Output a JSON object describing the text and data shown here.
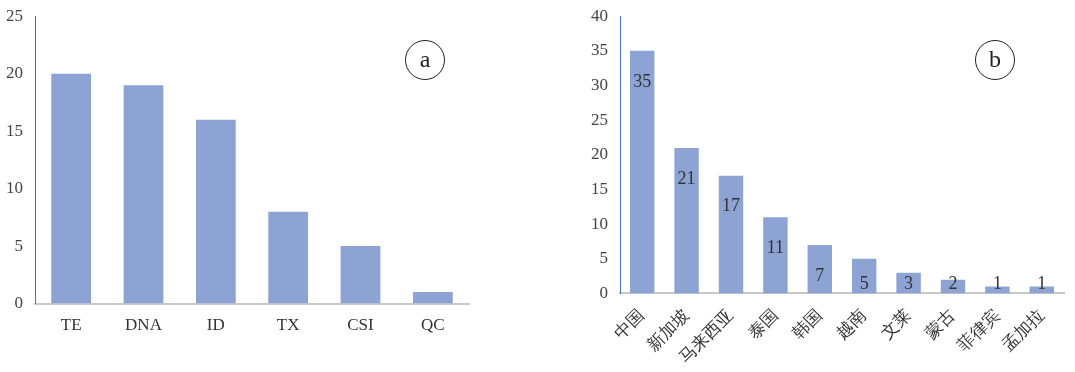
{
  "chart_data": [
    {
      "type": "bar",
      "categories": [
        "TE",
        "DNA",
        "ID",
        "TX",
        "CSI",
        "QC"
      ],
      "values": [
        20,
        19,
        16,
        8,
        5,
        1
      ],
      "color": "#8ca3d4",
      "ylim": [
        0,
        25
      ],
      "yticks": [
        0,
        5,
        10,
        15,
        20,
        25
      ],
      "grid": false,
      "annotations": [
        "a"
      ]
    },
    {
      "type": "bar",
      "categories": [
        "中国",
        "新加坡",
        "马来西亚",
        "泰国",
        "韩国",
        "越南",
        "文莱",
        "蒙古",
        "菲律宾",
        "孟加拉"
      ],
      "values": [
        35,
        21,
        17,
        11,
        7,
        5,
        3,
        2,
        1,
        1
      ],
      "color": "#8ca3d4",
      "ylim": [
        0,
        40
      ],
      "yticks": [
        0,
        5,
        10,
        15,
        20,
        25,
        30,
        35,
        40
      ],
      "grid": false,
      "data_labels": true,
      "annotations": [
        "b"
      ]
    }
  ]
}
